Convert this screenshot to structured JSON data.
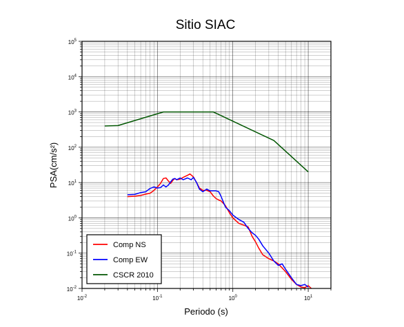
{
  "chart_data": {
    "type": "line",
    "title": "Sitio SIAC",
    "xlabel": "Periodo (s)",
    "ylabel": "PSA(cm/s²)",
    "xscale": "log",
    "yscale": "log",
    "xlim": [
      0.01,
      20
    ],
    "ylim": [
      0.01,
      100000
    ],
    "grid": true,
    "legend_position": "bottom-left",
    "x_ticks": [
      {
        "value": 0.01,
        "base": "10",
        "exp": "-2"
      },
      {
        "value": 0.1,
        "base": "10",
        "exp": "-1"
      },
      {
        "value": 1,
        "base": "10",
        "exp": "0"
      },
      {
        "value": 10,
        "base": "10",
        "exp": "1"
      }
    ],
    "y_ticks": [
      {
        "value": 0.01,
        "base": "10",
        "exp": "-2"
      },
      {
        "value": 0.1,
        "base": "10",
        "exp": "-1"
      },
      {
        "value": 1,
        "base": "10",
        "exp": "0"
      },
      {
        "value": 10,
        "base": "10",
        "exp": "1"
      },
      {
        "value": 100,
        "base": "10",
        "exp": "2"
      },
      {
        "value": 1000,
        "base": "10",
        "exp": "3"
      },
      {
        "value": 10000,
        "base": "10",
        "exp": "4"
      },
      {
        "value": 100000,
        "base": "10",
        "exp": "5"
      }
    ],
    "series": [
      {
        "name": "Comp NS",
        "color": "#ff0000",
        "points": [
          [
            0.04,
            4.0
          ],
          [
            0.05,
            4.1
          ],
          [
            0.06,
            4.3
          ],
          [
            0.07,
            4.7
          ],
          [
            0.08,
            5.0
          ],
          [
            0.09,
            6.0
          ],
          [
            0.1,
            7.5
          ],
          [
            0.11,
            9.5
          ],
          [
            0.12,
            13.0
          ],
          [
            0.13,
            13.5
          ],
          [
            0.14,
            11.0
          ],
          [
            0.15,
            9.5
          ],
          [
            0.16,
            11.5
          ],
          [
            0.17,
            13.0
          ],
          [
            0.18,
            12.0
          ],
          [
            0.2,
            12.5
          ],
          [
            0.22,
            14.0
          ],
          [
            0.25,
            16.0
          ],
          [
            0.27,
            17.5
          ],
          [
            0.3,
            14.5
          ],
          [
            0.33,
            10.0
          ],
          [
            0.36,
            7.0
          ],
          [
            0.4,
            6.0
          ],
          [
            0.45,
            6.0
          ],
          [
            0.5,
            5.5
          ],
          [
            0.55,
            4.2
          ],
          [
            0.6,
            3.5
          ],
          [
            0.65,
            3.2
          ],
          [
            0.7,
            3.0
          ],
          [
            0.8,
            2.2
          ],
          [
            0.9,
            1.4
          ],
          [
            1.0,
            1.0
          ],
          [
            1.2,
            0.7
          ],
          [
            1.4,
            0.62
          ],
          [
            1.6,
            0.55
          ],
          [
            1.8,
            0.3
          ],
          [
            2.0,
            0.21
          ],
          [
            2.2,
            0.14
          ],
          [
            2.5,
            0.09
          ],
          [
            3.0,
            0.07
          ],
          [
            3.5,
            0.06
          ],
          [
            4.0,
            0.05
          ],
          [
            5.0,
            0.03
          ],
          [
            6.0,
            0.018
          ],
          [
            7.0,
            0.013
          ],
          [
            8.0,
            0.011
          ],
          [
            9.0,
            0.0105
          ],
          [
            10.0,
            0.012
          ],
          [
            11.0,
            0.01
          ]
        ]
      },
      {
        "name": "Comp EW",
        "color": "#0000ff",
        "points": [
          [
            0.04,
            4.5
          ],
          [
            0.05,
            4.6
          ],
          [
            0.06,
            5.2
          ],
          [
            0.07,
            5.5
          ],
          [
            0.08,
            6.8
          ],
          [
            0.09,
            7.5
          ],
          [
            0.1,
            7.0
          ],
          [
            0.11,
            7.2
          ],
          [
            0.12,
            8.5
          ],
          [
            0.13,
            7.5
          ],
          [
            0.14,
            8.5
          ],
          [
            0.15,
            10.5
          ],
          [
            0.16,
            12.5
          ],
          [
            0.17,
            13.0
          ],
          [
            0.18,
            12.0
          ],
          [
            0.2,
            13.5
          ],
          [
            0.22,
            12.0
          ],
          [
            0.25,
            13.5
          ],
          [
            0.28,
            12.0
          ],
          [
            0.3,
            14.0
          ],
          [
            0.33,
            10.0
          ],
          [
            0.36,
            6.5
          ],
          [
            0.4,
            5.5
          ],
          [
            0.45,
            6.5
          ],
          [
            0.5,
            5.8
          ],
          [
            0.6,
            5.8
          ],
          [
            0.65,
            5.5
          ],
          [
            0.7,
            4.0
          ],
          [
            0.8,
            2.0
          ],
          [
            0.9,
            1.6
          ],
          [
            1.0,
            1.2
          ],
          [
            1.2,
            0.9
          ],
          [
            1.4,
            0.75
          ],
          [
            1.6,
            0.5
          ],
          [
            1.8,
            0.38
          ],
          [
            2.0,
            0.32
          ],
          [
            2.2,
            0.25
          ],
          [
            2.5,
            0.16
          ],
          [
            3.0,
            0.1
          ],
          [
            3.5,
            0.06
          ],
          [
            4.0,
            0.045
          ],
          [
            4.5,
            0.05
          ],
          [
            5.0,
            0.035
          ],
          [
            6.0,
            0.02
          ],
          [
            7.0,
            0.013
          ],
          [
            8.0,
            0.012
          ],
          [
            9.0,
            0.013
          ],
          [
            10.0,
            0.011
          ]
        ]
      },
      {
        "name": "CSCR 2010",
        "color": "#005500",
        "points": [
          [
            0.02,
            400
          ],
          [
            0.03,
            410
          ],
          [
            0.12,
            1000
          ],
          [
            0.55,
            1000
          ],
          [
            3.5,
            155
          ],
          [
            10.0,
            20
          ]
        ]
      }
    ]
  }
}
